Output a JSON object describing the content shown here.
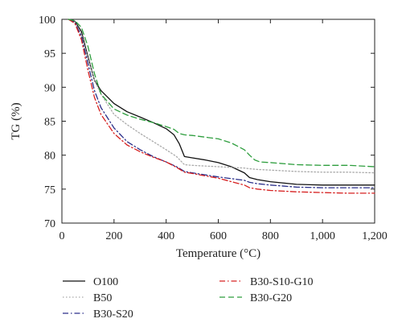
{
  "chart_data": {
    "type": "line",
    "xlabel": "Temperature (°C)",
    "ylabel": "TG (%)",
    "xlim": [
      0,
      1200
    ],
    "ylim": [
      70,
      100
    ],
    "xticks": [
      0,
      200,
      400,
      600,
      800,
      1000,
      1200
    ],
    "xtick_labels": [
      "0",
      "200",
      "400",
      "600",
      "800",
      "1,000",
      "1,200"
    ],
    "yticks": [
      70,
      75,
      80,
      85,
      90,
      95,
      100
    ],
    "ytick_labels": [
      "70",
      "75",
      "80",
      "85",
      "90",
      "95",
      "100"
    ],
    "grid": false,
    "legend_position": "bottom",
    "series": [
      {
        "name": "O100",
        "color": "#111111",
        "dash": "solid",
        "x": [
          25,
          50,
          75,
          100,
          125,
          150,
          200,
          250,
          300,
          350,
          400,
          430,
          450,
          470,
          500,
          550,
          600,
          650,
          700,
          720,
          750,
          800,
          900,
          1000,
          1100,
          1200
        ],
        "y": [
          100,
          99.7,
          98.2,
          94.5,
          91.0,
          89.5,
          87.6,
          86.4,
          85.6,
          84.8,
          83.9,
          83.0,
          81.7,
          79.8,
          79.6,
          79.3,
          78.9,
          78.3,
          77.4,
          76.7,
          76.4,
          76.1,
          75.7,
          75.6,
          75.6,
          75.6
        ]
      },
      {
        "name": "B50",
        "color": "#aaaaaa",
        "dash": "dotted",
        "x": [
          25,
          50,
          75,
          100,
          125,
          150,
          200,
          250,
          300,
          350,
          400,
          440,
          470,
          500,
          600,
          700,
          720,
          750,
          800,
          900,
          1000,
          1100,
          1200
        ],
        "y": [
          100,
          99.6,
          97.8,
          94.2,
          91.0,
          89.0,
          86.0,
          84.5,
          83.2,
          82.0,
          80.8,
          79.8,
          78.6,
          78.5,
          78.3,
          78.1,
          78.0,
          77.9,
          77.8,
          77.6,
          77.5,
          77.5,
          77.4
        ]
      },
      {
        "name": "B30-S20",
        "color": "#2a2f8a",
        "dash": "dashdot",
        "x": [
          25,
          50,
          75,
          100,
          125,
          150,
          200,
          250,
          300,
          350,
          400,
          440,
          470,
          500,
          600,
          700,
          720,
          750,
          800,
          900,
          1000,
          1100,
          1200
        ],
        "y": [
          100,
          99.5,
          97.5,
          93.5,
          89.5,
          87.0,
          84.0,
          82.0,
          80.8,
          79.8,
          79.0,
          78.3,
          77.6,
          77.4,
          76.8,
          76.3,
          76.0,
          75.8,
          75.6,
          75.3,
          75.2,
          75.2,
          75.2
        ]
      },
      {
        "name": "B30-S10-G10",
        "color": "#d62020",
        "dash": "dashdot",
        "x": [
          25,
          50,
          75,
          100,
          125,
          150,
          200,
          250,
          300,
          350,
          400,
          440,
          470,
          500,
          600,
          700,
          720,
          750,
          800,
          900,
          1000,
          1100,
          1200
        ],
        "y": [
          100,
          99.4,
          97.0,
          92.5,
          88.5,
          86.0,
          83.2,
          81.5,
          80.5,
          79.7,
          79.0,
          78.2,
          77.5,
          77.3,
          76.6,
          75.6,
          75.2,
          75.0,
          74.8,
          74.6,
          74.5,
          74.4,
          74.4
        ]
      },
      {
        "name": "B30-G20",
        "color": "#2e9e3e",
        "dash": "dashed",
        "x": [
          25,
          50,
          75,
          100,
          125,
          150,
          200,
          250,
          300,
          350,
          400,
          430,
          450,
          470,
          500,
          600,
          650,
          700,
          720,
          740,
          760,
          800,
          900,
          1000,
          1100,
          1200
        ],
        "y": [
          100,
          99.8,
          98.8,
          96.0,
          92.0,
          89.0,
          86.8,
          85.9,
          85.3,
          84.8,
          84.2,
          83.8,
          83.2,
          83.0,
          82.9,
          82.4,
          81.8,
          80.8,
          80.0,
          79.3,
          79.0,
          78.9,
          78.6,
          78.5,
          78.5,
          78.3
        ]
      }
    ]
  }
}
